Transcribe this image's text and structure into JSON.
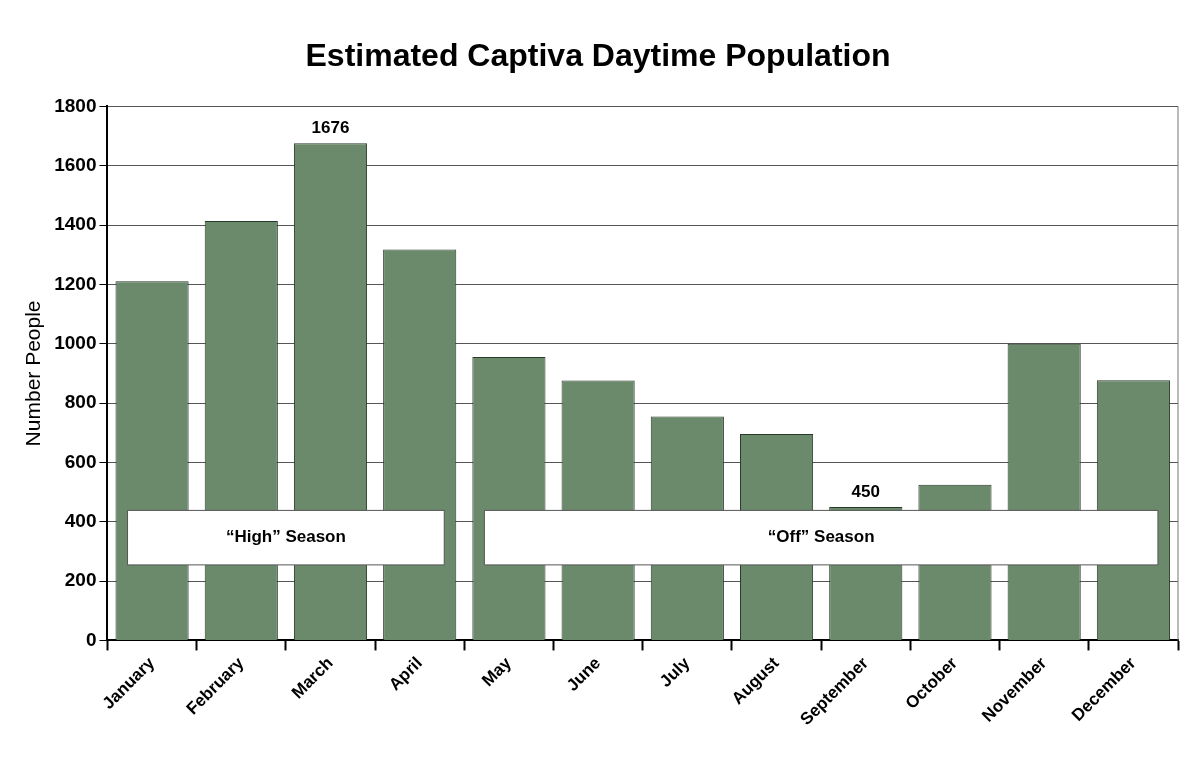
{
  "chart_data": {
    "type": "bar",
    "title": "Estimated Captiva Daytime Population",
    "ylabel": "Number People",
    "categories": [
      "January",
      "February",
      "March",
      "April",
      "May",
      "June",
      "July",
      "August",
      "September",
      "October",
      "November",
      "December"
    ],
    "values": [
      1211,
      1414,
      1676,
      1318,
      955,
      876,
      755,
      696,
      450,
      525,
      1000,
      877
    ],
    "value_labels": [
      null,
      null,
      "1676",
      null,
      null,
      null,
      null,
      null,
      "450",
      null,
      null,
      null
    ],
    "color": "#6b896b",
    "ylim": [
      0,
      1800
    ],
    "yticks": [
      0,
      200,
      400,
      600,
      800,
      1000,
      1200,
      1400,
      1600,
      1800
    ],
    "grid": "y",
    "bands": [
      {
        "axis": "x",
        "from": "January",
        "to": "April",
        "label": "“High” Season",
        "color": "#ffffff"
      },
      {
        "axis": "x",
        "from": "May",
        "to": "December",
        "label": "“Off” Season",
        "color": "#ffffff"
      }
    ]
  }
}
